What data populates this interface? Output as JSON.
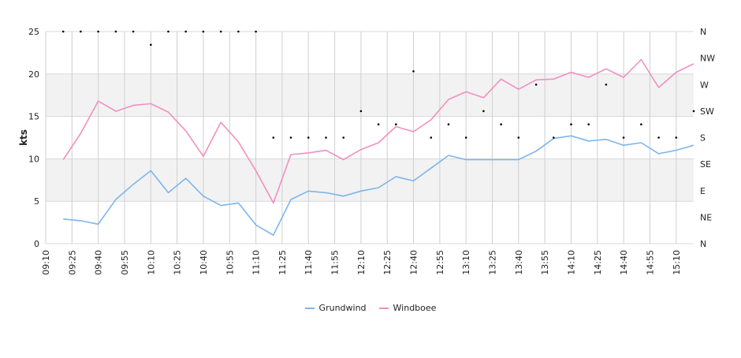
{
  "chart_data": {
    "type": "line",
    "ylabel": "kts",
    "ylim": [
      0,
      25
    ],
    "yticks": [
      0,
      5,
      10,
      15,
      20,
      25
    ],
    "y2ticks": [
      "N",
      "NE",
      "E",
      "SE",
      "S",
      "SW",
      "W",
      "NW",
      "N"
    ],
    "xticks": [
      "09:10",
      "09:25",
      "09:40",
      "09:55",
      "10:10",
      "10:25",
      "10:40",
      "10:55",
      "11:10",
      "11:25",
      "11:40",
      "11:55",
      "12:10",
      "12:25",
      "12:40",
      "12:55",
      "13:10",
      "13:25",
      "13:40",
      "13:55",
      "14:10",
      "14:25",
      "14:40",
      "14:55",
      "15:10"
    ],
    "x": [
      "09:20",
      "09:30",
      "09:40",
      "09:50",
      "10:00",
      "10:10",
      "10:20",
      "10:30",
      "10:40",
      "10:50",
      "11:00",
      "11:10",
      "11:20",
      "11:30",
      "11:40",
      "11:50",
      "12:00",
      "12:10",
      "12:20",
      "12:30",
      "12:40",
      "12:50",
      "13:00",
      "13:10",
      "13:20",
      "13:30",
      "13:40",
      "13:50",
      "14:00",
      "14:10",
      "14:20",
      "14:30",
      "14:40",
      "14:50",
      "15:00",
      "15:10",
      "15:20"
    ],
    "series": [
      {
        "name": "Grundwind",
        "color": "#7cb5ec",
        "values": [
          2.9,
          2.7,
          2.3,
          5.2,
          7.0,
          8.6,
          6.0,
          7.7,
          5.6,
          4.5,
          4.8,
          2.2,
          1.0,
          5.2,
          6.2,
          6.0,
          5.6,
          6.2,
          6.6,
          7.9,
          7.4,
          8.9,
          10.4,
          9.9,
          9.9,
          9.9,
          9.9,
          10.9,
          12.4,
          12.7,
          12.1,
          12.3,
          11.6,
          11.9,
          10.6,
          11.0,
          11.6
        ]
      },
      {
        "name": "Windboee",
        "color": "#f28fbf",
        "values": [
          9.9,
          13.0,
          16.8,
          15.6,
          16.3,
          16.5,
          15.5,
          13.3,
          10.3,
          14.3,
          12.0,
          8.6,
          4.8,
          10.5,
          10.7,
          11.0,
          9.9,
          11.1,
          11.9,
          13.8,
          13.2,
          14.6,
          17.0,
          17.9,
          17.2,
          19.4,
          18.2,
          19.3,
          19.4,
          20.2,
          19.6,
          20.6,
          19.6,
          21.7,
          18.4,
          20.2,
          21.2
        ]
      }
    ],
    "direction_dots": [
      "N",
      "N",
      "N",
      "N",
      "N",
      "NNW",
      "N",
      "N",
      "N",
      "N",
      "N",
      "N",
      "S",
      "S",
      "S",
      "S",
      "S",
      "SW",
      "SSW",
      "SSW",
      "WNW",
      "S",
      "SSW",
      "S",
      "SW",
      "SSW",
      "S",
      "W",
      "S",
      "SSW",
      "SSW",
      "W",
      "S",
      "SSW",
      "S",
      "S",
      "SW"
    ],
    "grid": true,
    "legend_position": "bottom-center"
  }
}
